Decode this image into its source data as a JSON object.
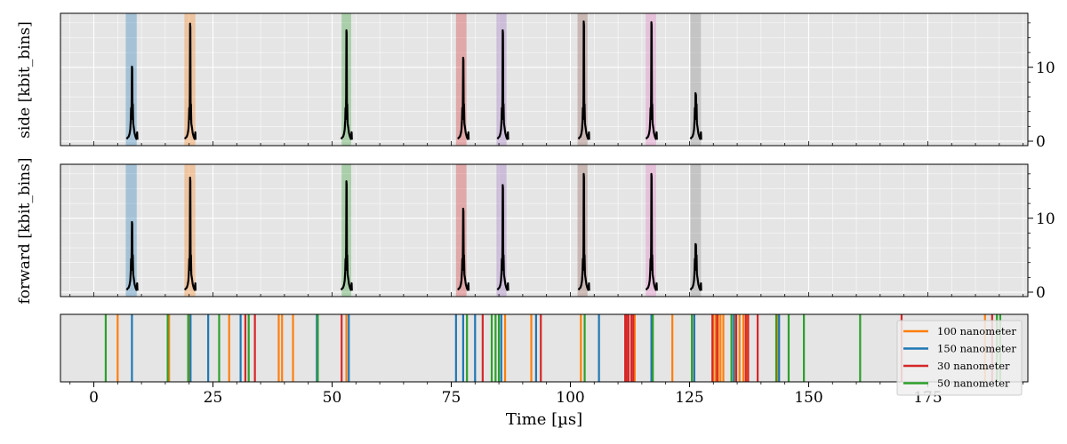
{
  "chart_data": [
    {
      "type": "line",
      "ylabel": "side [kbit_bins]",
      "yticks": [
        0,
        10
      ],
      "ylim": [
        -0.6,
        17.3
      ],
      "xlim": [
        -7,
        196
      ],
      "grid": true,
      "regions": [
        {
          "x0": 6.7,
          "x1": 9.0,
          "color": "#1f77b4"
        },
        {
          "x0": 19.0,
          "x1": 21.3,
          "color": "#ff7f0e"
        },
        {
          "x0": 52.0,
          "x1": 54.0,
          "color": "#2ca02c"
        },
        {
          "x0": 76.0,
          "x1": 78.2,
          "color": "#d62728"
        },
        {
          "x0": 84.5,
          "x1": 86.6,
          "color": "#9467bd"
        },
        {
          "x0": 101.5,
          "x1": 103.6,
          "color": "#8c564b"
        },
        {
          "x0": 115.8,
          "x1": 118.0,
          "color": "#e377c2"
        },
        {
          "x0": 125.2,
          "x1": 127.4,
          "color": "#7f7f7f"
        }
      ],
      "peaks": [
        {
          "x": 8.0,
          "peak": 10.1
        },
        {
          "x": 20.2,
          "peak": 15.9
        },
        {
          "x": 53.0,
          "peak": 15.0
        },
        {
          "x": 77.5,
          "peak": 11.3
        },
        {
          "x": 85.8,
          "peak": 15.0
        },
        {
          "x": 102.8,
          "peak": 16.2
        },
        {
          "x": 117.0,
          "peak": 16.1
        },
        {
          "x": 126.3,
          "peak": 6.4
        }
      ]
    },
    {
      "type": "line",
      "ylabel": "forward [kbit_bins]",
      "yticks": [
        0,
        10
      ],
      "ylim": [
        -0.6,
        17.3
      ],
      "xlim": [
        -7,
        196
      ],
      "grid": true,
      "regions": [
        {
          "x0": 6.7,
          "x1": 9.0,
          "color": "#1f77b4"
        },
        {
          "x0": 19.0,
          "x1": 21.3,
          "color": "#ff7f0e"
        },
        {
          "x0": 52.0,
          "x1": 54.0,
          "color": "#2ca02c"
        },
        {
          "x0": 76.0,
          "x1": 78.2,
          "color": "#d62728"
        },
        {
          "x0": 84.5,
          "x1": 86.6,
          "color": "#9467bd"
        },
        {
          "x0": 101.5,
          "x1": 103.6,
          "color": "#8c564b"
        },
        {
          "x0": 115.8,
          "x1": 118.0,
          "color": "#e377c2"
        },
        {
          "x0": 125.2,
          "x1": 127.4,
          "color": "#7f7f7f"
        }
      ],
      "peaks": [
        {
          "x": 8.0,
          "peak": 9.5
        },
        {
          "x": 20.2,
          "peak": 15.5
        },
        {
          "x": 53.0,
          "peak": 15.0
        },
        {
          "x": 77.5,
          "peak": 11.3
        },
        {
          "x": 85.8,
          "peak": 14.5
        },
        {
          "x": 102.8,
          "peak": 16.0
        },
        {
          "x": 117.0,
          "peak": 16.0
        },
        {
          "x": 126.3,
          "peak": 6.5
        }
      ]
    },
    {
      "type": "event",
      "xlabel": "Time [µs]",
      "xticks": [
        0,
        25,
        50,
        75,
        100,
        125,
        150,
        175
      ],
      "xlim": [
        -7,
        196
      ],
      "legend_position": "bottom-right",
      "legend": [
        {
          "name": "100 nanometer",
          "color": "#ff7f0e"
        },
        {
          "name": "150 nanometer",
          "color": "#1f77b4"
        },
        {
          "name": "30 nanometer",
          "color": "#d62728"
        },
        {
          "name": "50 nanometer",
          "color": "#2ca02c"
        }
      ],
      "series": [
        {
          "name": "100 nanometer",
          "x": [
            5.0,
            15.8,
            20.0,
            28.4,
            38.8,
            39.5,
            41.8,
            53.0,
            86.3,
            91.8,
            102.2,
            111.8,
            113.5,
            117.0,
            121.4,
            126.0,
            130.0,
            130.5,
            131.0,
            131.5,
            132.1,
            134.5,
            135.5,
            136.3,
            137.0,
            143.5,
            187.0
          ]
        },
        {
          "name": "150 nanometer",
          "x": [
            8.0,
            20.3,
            24.0,
            30.8,
            46.8,
            53.5,
            76.0,
            77.5,
            80.0,
            85.5,
            92.8,
            106.0,
            117.0,
            126.0,
            134.3,
            143.8
          ]
        },
        {
          "name": "30 nanometer",
          "x": [
            31.8,
            33.8,
            52.0,
            81.6,
            93.8,
            111.5,
            111.8,
            112.2,
            112.8,
            113.2,
            129.8,
            130.8,
            134.8,
            136.8,
            137.3,
            139.3,
            169.5,
            188.5
          ]
        },
        {
          "name": "50 nanometer",
          "x": [
            2.5,
            15.5,
            19.8,
            26.3,
            32.5,
            47.0,
            78.3,
            83.5,
            84.3,
            85.0,
            103.0,
            117.3,
            125.5,
            133.8,
            143.2,
            145.8,
            149.0,
            160.8,
            189.5,
            190.2
          ]
        }
      ]
    }
  ]
}
